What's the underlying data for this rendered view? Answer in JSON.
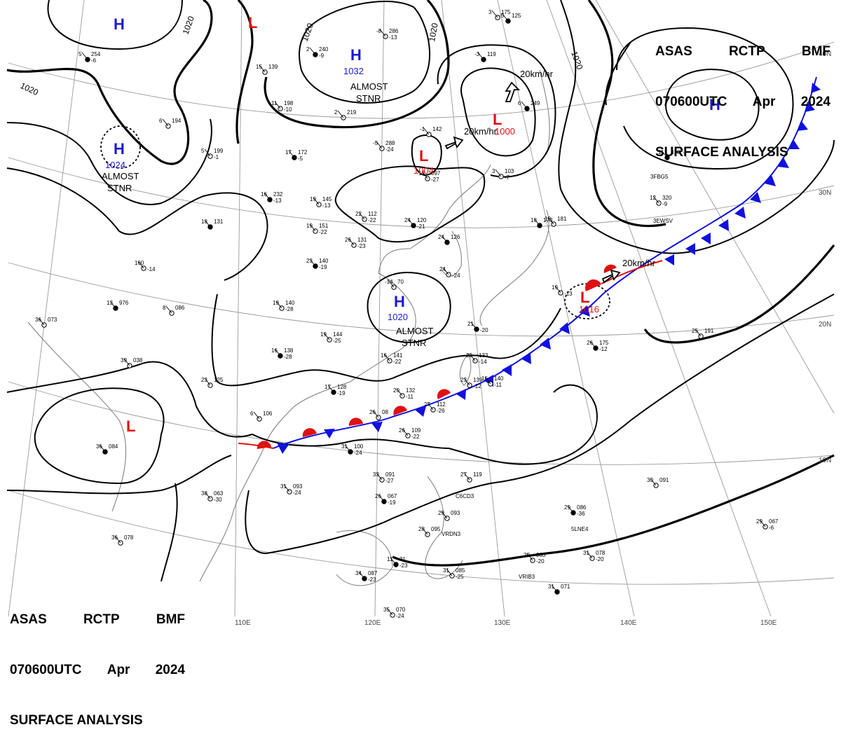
{
  "header": {
    "line1": [
      "ASAS",
      "RCTP",
      "BMF"
    ],
    "line2": [
      "070600UTC",
      "Apr",
      "2024"
    ],
    "line3": "SURFACE ANALYSIS"
  },
  "pressure_centers": [
    {
      "type": "H",
      "value": "1032",
      "note": "ALMOST STNR"
    },
    {
      "type": "H",
      "value": "1024",
      "note": "ALMOST STNR"
    },
    {
      "type": "H",
      "value": "1020",
      "note": "ALMOST STNR"
    },
    {
      "type": "H",
      "value": "",
      "note": ""
    },
    {
      "type": "H",
      "value": "",
      "note": ""
    },
    {
      "type": "L",
      "value": "1004",
      "note": ""
    },
    {
      "type": "L",
      "value": "1000",
      "note": "20km/hr"
    },
    {
      "type": "L",
      "value": "1016",
      "note": "20km/hr"
    },
    {
      "type": "L",
      "value": "",
      "note": ""
    },
    {
      "type": "L",
      "value": "",
      "note": ""
    }
  ],
  "motion_labels": [
    "20km/hr",
    "20km/hr",
    "20km/hr"
  ],
  "isobar_labels": [
    "1020",
    "1020",
    "1020",
    "1020",
    "1020"
  ],
  "lon_labels": [
    "110E",
    "120E",
    "130E",
    "140E",
    "150E"
  ],
  "lat_labels": [
    "40N",
    "30N",
    "20N",
    "10N"
  ],
  "colors": {
    "high": "#1a1ad6",
    "low": "#e01010",
    "cold_front": "#1010e0",
    "warm_front": "#e01010",
    "isobar": "#000000",
    "grid": "#9a9a9a",
    "coast": "#7a7a7a"
  },
  "stations": [
    {
      "t": "16",
      "p": "232",
      "d": "-13"
    },
    {
      "t": "19",
      "p": "145",
      "d": "-13"
    },
    {
      "t": "22",
      "p": "112",
      "d": "-22"
    },
    {
      "t": "24",
      "p": "120",
      "d": "-21"
    },
    {
      "t": "19",
      "p": "151",
      "d": "-22"
    },
    {
      "t": "26",
      "p": "131",
      "d": "-23"
    },
    {
      "t": "23",
      "p": "140",
      "d": "-19"
    },
    {
      "t": "19",
      "p": "140",
      "d": "-28"
    },
    {
      "t": "19",
      "p": "144",
      "d": "-25"
    },
    {
      "t": "16",
      "p": "138",
      "d": "-28"
    },
    {
      "t": "16",
      "p": "141",
      "d": "-22"
    },
    {
      "t": "23",
      "p": "133",
      "d": "-14"
    },
    {
      "t": "17",
      "p": "128",
      "d": "-19"
    },
    {
      "t": "20",
      "p": "132",
      "d": "-11"
    },
    {
      "t": "26",
      "p": "109",
      "d": "-22"
    },
    {
      "t": "31",
      "p": "100",
      "d": "-24"
    },
    {
      "t": "31",
      "p": "093",
      "d": "-24"
    },
    {
      "t": "38",
      "p": "063",
      "d": "-30"
    },
    {
      "t": "36",
      "p": "084",
      "d": ""
    },
    {
      "t": "36",
      "p": "073",
      "d": ""
    },
    {
      "t": "39",
      "p": "038",
      "d": ""
    },
    {
      "t": "13",
      "p": "976",
      "d": ""
    },
    {
      "t": "8",
      "p": "086",
      "d": ""
    },
    {
      "t": "160",
      "p": "",
      "d": "-14"
    },
    {
      "t": "18",
      "p": "131",
      "d": ""
    },
    {
      "t": "23",
      "p": "125",
      "d": ""
    },
    {
      "t": "33",
      "p": "091",
      "d": "-27"
    },
    {
      "t": "26",
      "p": "067",
      "d": "-19"
    },
    {
      "t": "29",
      "p": "093",
      "d": ""
    },
    {
      "t": "27",
      "p": "119",
      "d": ""
    },
    {
      "t": "29",
      "p": "086",
      "d": "-36"
    },
    {
      "t": "29",
      "p": "063",
      "d": "-20"
    },
    {
      "t": "31",
      "p": "078",
      "d": "-20"
    },
    {
      "t": "31",
      "p": "071",
      "d": ""
    },
    {
      "t": "30",
      "p": "091",
      "d": ""
    },
    {
      "t": "29",
      "p": "067",
      "d": "-6"
    },
    {
      "t": "34",
      "p": "087",
      "d": "-23"
    },
    {
      "t": "35",
      "p": "070",
      "d": "-24"
    },
    {
      "t": "36",
      "p": "078",
      "d": ""
    },
    {
      "t": "26",
      "p": "175",
      "d": "-12"
    },
    {
      "t": "25",
      "p": "191",
      "d": ""
    },
    {
      "t": "11",
      "p": "198",
      "d": "-10"
    },
    {
      "t": "17",
      "p": "172",
      "d": "-5"
    },
    {
      "t": "5",
      "p": "199",
      "d": "-1"
    },
    {
      "t": "-8",
      "p": "286",
      "d": "-13"
    },
    {
      "t": "2",
      "p": "240",
      "d": "-9"
    },
    {
      "t": "2",
      "p": "219",
      "d": ""
    },
    {
      "t": "-5",
      "p": "288",
      "d": "-24"
    },
    {
      "t": "11",
      "p": "318",
      "d": ""
    },
    {
      "t": "12",
      "p": "320",
      "d": "-9"
    },
    {
      "t": "13",
      "p": "097",
      "d": "-27"
    },
    {
      "t": "-3",
      "p": "119",
      "d": ""
    },
    {
      "t": "-1",
      "p": "142",
      "d": ""
    },
    {
      "t": "19",
      "p": "181",
      "d": ""
    },
    {
      "t": "-5",
      "p": "125",
      "d": ""
    },
    {
      "t": "23",
      "p": "139",
      "d": "-12"
    },
    {
      "t": "16",
      "p": "140",
      "d": "-11"
    },
    {
      "t": "5",
      "p": "254",
      "d": "-6"
    },
    {
      "t": "6",
      "p": "194",
      "d": ""
    },
    {
      "t": "3",
      "p": "175",
      "d": ""
    },
    {
      "t": "6",
      "p": "249",
      "d": ""
    },
    {
      "t": "15",
      "p": "139",
      "d": ""
    },
    {
      "t": "6",
      "p": "106",
      "d": ""
    },
    {
      "t": "18",
      "p": "173",
      "d": ""
    },
    {
      "t": "28",
      "p": "095",
      "d": ""
    },
    {
      "t": "31",
      "p": "085",
      "d": "-25"
    },
    {
      "t": "11",
      "p": "31",
      "d": "-23"
    },
    {
      "t": "3",
      "p": "103",
      "d": "-7"
    },
    {
      "t": "27",
      "p": "112",
      "d": "-26"
    },
    {
      "t": "24",
      "p": "126",
      "d": ""
    },
    {
      "t": "-14",
      "p": "70",
      "d": ""
    },
    {
      "t": "24",
      "p": "",
      "d": "-24"
    },
    {
      "t": "21",
      "p": "",
      "d": "-20"
    },
    {
      "t": "19",
      "p": "",
      "d": "-13"
    },
    {
      "t": "26",
      "p": "08",
      "d": ""
    }
  ],
  "station_codes": [
    "C6CD3",
    "VRDN3",
    "5LNE4",
    "VRIB3",
    "3FBG5",
    "3EWSV"
  ]
}
